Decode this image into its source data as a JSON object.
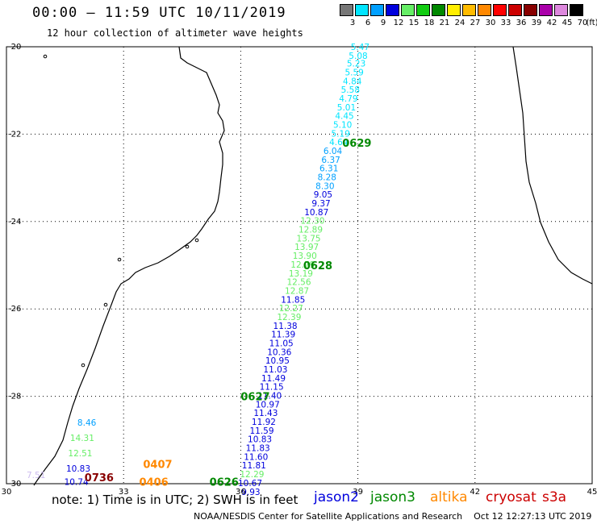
{
  "header": {
    "title": "00:00 – 11:59 UTC 10/11/2019",
    "subtitle": "12 hour collection of altimeter wave heights"
  },
  "color_scale": {
    "unit": "(ft)",
    "items": [
      {
        "label": "3",
        "color": "#777777"
      },
      {
        "label": "6",
        "color": "#00e5ff"
      },
      {
        "label": "9",
        "color": "#00a0ff"
      },
      {
        "label": "12",
        "color": "#0000dd"
      },
      {
        "label": "15",
        "color": "#66ee66"
      },
      {
        "label": "18",
        "color": "#11cc11"
      },
      {
        "label": "21",
        "color": "#008800"
      },
      {
        "label": "24",
        "color": "#ffee00"
      },
      {
        "label": "27",
        "color": "#ffbb00"
      },
      {
        "label": "30",
        "color": "#ff8800"
      },
      {
        "label": "33",
        "color": "#ff0000"
      },
      {
        "label": "36",
        "color": "#cc0000"
      },
      {
        "label": "39",
        "color": "#880000"
      },
      {
        "label": "42",
        "color": "#aa00aa"
      },
      {
        "label": "45",
        "color": "#dd88dd"
      },
      {
        "label": "70",
        "color": "#000000"
      }
    ]
  },
  "map": {
    "lon_labels": [
      "30",
      "33",
      "36",
      "39",
      "42",
      "45"
    ],
    "lat_labels": [
      "-20",
      "-22",
      "-24",
      "-26",
      "-28",
      "-30"
    ],
    "lon_range": [
      30,
      45
    ],
    "lat_range": [
      -30,
      -20
    ],
    "graticule": "dotted"
  },
  "track_labels": [
    {
      "text": "0629",
      "lon": 38.6,
      "lat": -22.2,
      "color": "#008800"
    },
    {
      "text": "0628",
      "lon": 37.6,
      "lat": -25.0,
      "color": "#008800"
    },
    {
      "text": "0627",
      "lon": 36.0,
      "lat": -28.0,
      "color": "#008800"
    },
    {
      "text": "0626",
      "lon": 35.2,
      "lat": -29.95,
      "color": "#008800"
    },
    {
      "text": "0407",
      "lon": 33.5,
      "lat": -29.55,
      "color": "#ff8800"
    },
    {
      "text": "0406",
      "lon": 33.4,
      "lat": -29.95,
      "color": "#ff8800"
    },
    {
      "text": "0736",
      "lon": 32.0,
      "lat": -29.85,
      "color": "#880000"
    }
  ],
  "observations": [
    {
      "v": "5.47",
      "lon": 39.3,
      "lat": -20.0,
      "c": "#00e5ff"
    },
    {
      "v": "5.08",
      "lon": 39.25,
      "lat": -20.2,
      "c": "#00e5ff"
    },
    {
      "v": "5.23",
      "lon": 39.2,
      "lat": -20.38,
      "c": "#00e5ff"
    },
    {
      "v": "5.59",
      "lon": 39.15,
      "lat": -20.58,
      "c": "#00e5ff"
    },
    {
      "v": "4.84",
      "lon": 39.1,
      "lat": -20.78,
      "c": "#00e5ff"
    },
    {
      "v": "5.58",
      "lon": 39.05,
      "lat": -20.98,
      "c": "#00e5ff"
    },
    {
      "v": "4.79",
      "lon": 39.0,
      "lat": -21.18,
      "c": "#00e5ff"
    },
    {
      "v": "5.01",
      "lon": 38.95,
      "lat": -21.38,
      "c": "#00e5ff"
    },
    {
      "v": "4.45",
      "lon": 38.9,
      "lat": -21.58,
      "c": "#00e5ff"
    },
    {
      "v": "5.10",
      "lon": 38.85,
      "lat": -21.78,
      "c": "#00e5ff"
    },
    {
      "v": "5.19",
      "lon": 38.8,
      "lat": -21.98,
      "c": "#00e5ff"
    },
    {
      "v": "4.64",
      "lon": 38.75,
      "lat": -22.18,
      "c": "#00e5ff"
    },
    {
      "v": "6.04",
      "lon": 38.6,
      "lat": -22.38,
      "c": "#00a0ff"
    },
    {
      "v": "6.37",
      "lon": 38.55,
      "lat": -22.58,
      "c": "#00a0ff"
    },
    {
      "v": "6.31",
      "lon": 38.5,
      "lat": -22.78,
      "c": "#00a0ff"
    },
    {
      "v": "8.28",
      "lon": 38.45,
      "lat": -22.98,
      "c": "#00a0ff"
    },
    {
      "v": "8.30",
      "lon": 38.4,
      "lat": -23.18,
      "c": "#00a0ff"
    },
    {
      "v": "9.05",
      "lon": 38.35,
      "lat": -23.38,
      "c": "#0000dd"
    },
    {
      "v": "9.37",
      "lon": 38.3,
      "lat": -23.58,
      "c": "#0000dd"
    },
    {
      "v": "10.87",
      "lon": 38.25,
      "lat": -23.78,
      "c": "#0000dd"
    },
    {
      "v": "12.30",
      "lon": 38.15,
      "lat": -23.98,
      "c": "#66ee66"
    },
    {
      "v": "12.89",
      "lon": 38.1,
      "lat": -24.18,
      "c": "#66ee66"
    },
    {
      "v": "13.75",
      "lon": 38.05,
      "lat": -24.38,
      "c": "#66ee66"
    },
    {
      "v": "13.97",
      "lon": 38.0,
      "lat": -24.58,
      "c": "#66ee66"
    },
    {
      "v": "13.90",
      "lon": 37.95,
      "lat": -24.78,
      "c": "#66ee66"
    },
    {
      "v": "12.79",
      "lon": 37.9,
      "lat": -24.98,
      "c": "#66ee66"
    },
    {
      "v": "13.19",
      "lon": 37.85,
      "lat": -25.18,
      "c": "#66ee66"
    },
    {
      "v": "12.56",
      "lon": 37.8,
      "lat": -25.38,
      "c": "#66ee66"
    },
    {
      "v": "12.87",
      "lon": 37.75,
      "lat": -25.58,
      "c": "#66ee66"
    },
    {
      "v": "11.85",
      "lon": 37.65,
      "lat": -25.78,
      "c": "#0000dd"
    },
    {
      "v": "12.27",
      "lon": 37.6,
      "lat": -25.98,
      "c": "#66ee66"
    },
    {
      "v": "12.39",
      "lon": 37.55,
      "lat": -26.18,
      "c": "#66ee66"
    },
    {
      "v": "11.38",
      "lon": 37.45,
      "lat": -26.38,
      "c": "#0000dd"
    },
    {
      "v": "11.39",
      "lon": 37.4,
      "lat": -26.58,
      "c": "#0000dd"
    },
    {
      "v": "11.05",
      "lon": 37.35,
      "lat": -26.78,
      "c": "#0000dd"
    },
    {
      "v": "10.36",
      "lon": 37.3,
      "lat": -26.98,
      "c": "#0000dd"
    },
    {
      "v": "10.95",
      "lon": 37.25,
      "lat": -27.18,
      "c": "#0000dd"
    },
    {
      "v": "11.03",
      "lon": 37.2,
      "lat": -27.38,
      "c": "#0000dd"
    },
    {
      "v": "11.49",
      "lon": 37.15,
      "lat": -27.58,
      "c": "#0000dd"
    },
    {
      "v": "11.15",
      "lon": 37.1,
      "lat": -27.78,
      "c": "#0000dd"
    },
    {
      "v": "11.40",
      "lon": 37.05,
      "lat": -27.98,
      "c": "#0000dd"
    },
    {
      "v": "10.97",
      "lon": 37.0,
      "lat": -28.18,
      "c": "#0000dd"
    },
    {
      "v": "11.43",
      "lon": 36.95,
      "lat": -28.38,
      "c": "#0000dd"
    },
    {
      "v": "11.92",
      "lon": 36.9,
      "lat": -28.58,
      "c": "#0000dd"
    },
    {
      "v": "11.59",
      "lon": 36.85,
      "lat": -28.78,
      "c": "#0000dd"
    },
    {
      "v": "10.83",
      "lon": 36.8,
      "lat": -28.98,
      "c": "#0000dd"
    },
    {
      "v": "11.83",
      "lon": 36.75,
      "lat": -29.18,
      "c": "#0000dd"
    },
    {
      "v": "11.60",
      "lon": 36.7,
      "lat": -29.38,
      "c": "#0000dd"
    },
    {
      "v": "11.81",
      "lon": 36.65,
      "lat": -29.58,
      "c": "#0000dd"
    },
    {
      "v": "12.29",
      "lon": 36.6,
      "lat": -29.78,
      "c": "#66ee66"
    },
    {
      "v": "10.67",
      "lon": 36.55,
      "lat": -29.98,
      "c": "#0000dd"
    },
    {
      "v": "9.93",
      "lon": 36.5,
      "lat": -30.18,
      "c": "#0000dd"
    },
    {
      "v": "8.46",
      "lon": 32.3,
      "lat": -28.6,
      "c": "#00a0ff"
    },
    {
      "v": "14.31",
      "lon": 32.25,
      "lat": -28.95,
      "c": "#66ee66"
    },
    {
      "v": "12.51",
      "lon": 32.2,
      "lat": -29.3,
      "c": "#66ee66"
    },
    {
      "v": "10.83",
      "lon": 32.15,
      "lat": -29.65,
      "c": "#0000dd"
    },
    {
      "v": "10.74",
      "lon": 32.1,
      "lat": -29.95,
      "c": "#0000dd"
    },
    {
      "v": "7.51",
      "lon": 31.0,
      "lat": -29.8,
      "c": "#ccbbee"
    }
  ],
  "legend": {
    "note": "note: 1) Time is in UTC; 2) SWH is in feet",
    "satellites": [
      {
        "name": "jason2",
        "color": "#0000dd"
      },
      {
        "name": "jason3",
        "color": "#008800"
      },
      {
        "name": "altika",
        "color": "#ff8800"
      },
      {
        "name": "cryosat",
        "color": "#cc0000"
      },
      {
        "name": "s3a",
        "color": "#cc0000"
      }
    ],
    "footer": "NOAA/NESDIS Center for Satellite Applications and Research    Oct 12 12:27:13 UTC 2019"
  }
}
